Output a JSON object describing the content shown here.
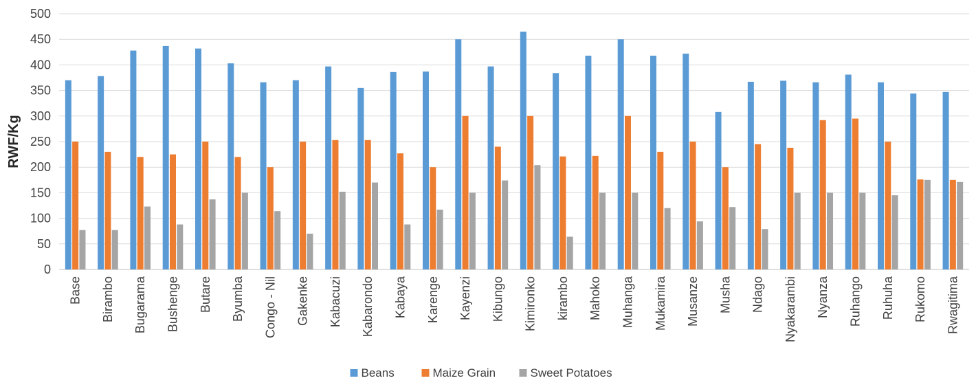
{
  "chart_data": {
    "type": "bar",
    "title": "",
    "xlabel": "",
    "ylabel": "RWF/Kg",
    "ylim": [
      0,
      500
    ],
    "yticks": [
      0,
      50,
      100,
      150,
      200,
      250,
      300,
      350,
      400,
      450,
      500
    ],
    "grid": "horizontal",
    "legend_position": "bottom",
    "categories": [
      "Base",
      "Birambo",
      "Bugarama",
      "Bushenge",
      "Butare",
      "Byumba",
      "Congo - Nil",
      "Gakenke",
      "Kabacuzi",
      "Kabarondo",
      "Kabaya",
      "Karenge",
      "Kayenzi",
      "Kibungo",
      "Kimironko",
      "kirambo",
      "Mahoko",
      "Muhanga",
      "Mukamira",
      "Musanze",
      "Musha",
      "Ndago",
      "Nyakarambi",
      "Nyanza",
      "Ruhango",
      "Ruhuha",
      "Rukomo",
      "Rwagitima"
    ],
    "series": [
      {
        "name": "Beans",
        "color": "#5B9BD5",
        "values": [
          370,
          378,
          428,
          437,
          432,
          403,
          366,
          370,
          397,
          355,
          386,
          387,
          450,
          397,
          465,
          384,
          418,
          450,
          418,
          422,
          308,
          367,
          369,
          366,
          381,
          366,
          344,
          347
        ]
      },
      {
        "name": "Maize Grain",
        "color": "#ED7D31",
        "values": [
          250,
          230,
          220,
          225,
          250,
          220,
          200,
          250,
          253,
          253,
          227,
          200,
          300,
          240,
          300,
          221,
          222,
          300,
          230,
          250,
          200,
          245,
          238,
          292,
          295,
          250,
          176,
          175
        ]
      },
      {
        "name": "Sweet Potatoes",
        "color": "#A5A5A5",
        "values": [
          77,
          77,
          123,
          88,
          137,
          150,
          114,
          70,
          152,
          170,
          88,
          117,
          150,
          174,
          204,
          64,
          150,
          150,
          120,
          94,
          122,
          79,
          150,
          150,
          150,
          145,
          175,
          171
        ]
      }
    ]
  }
}
